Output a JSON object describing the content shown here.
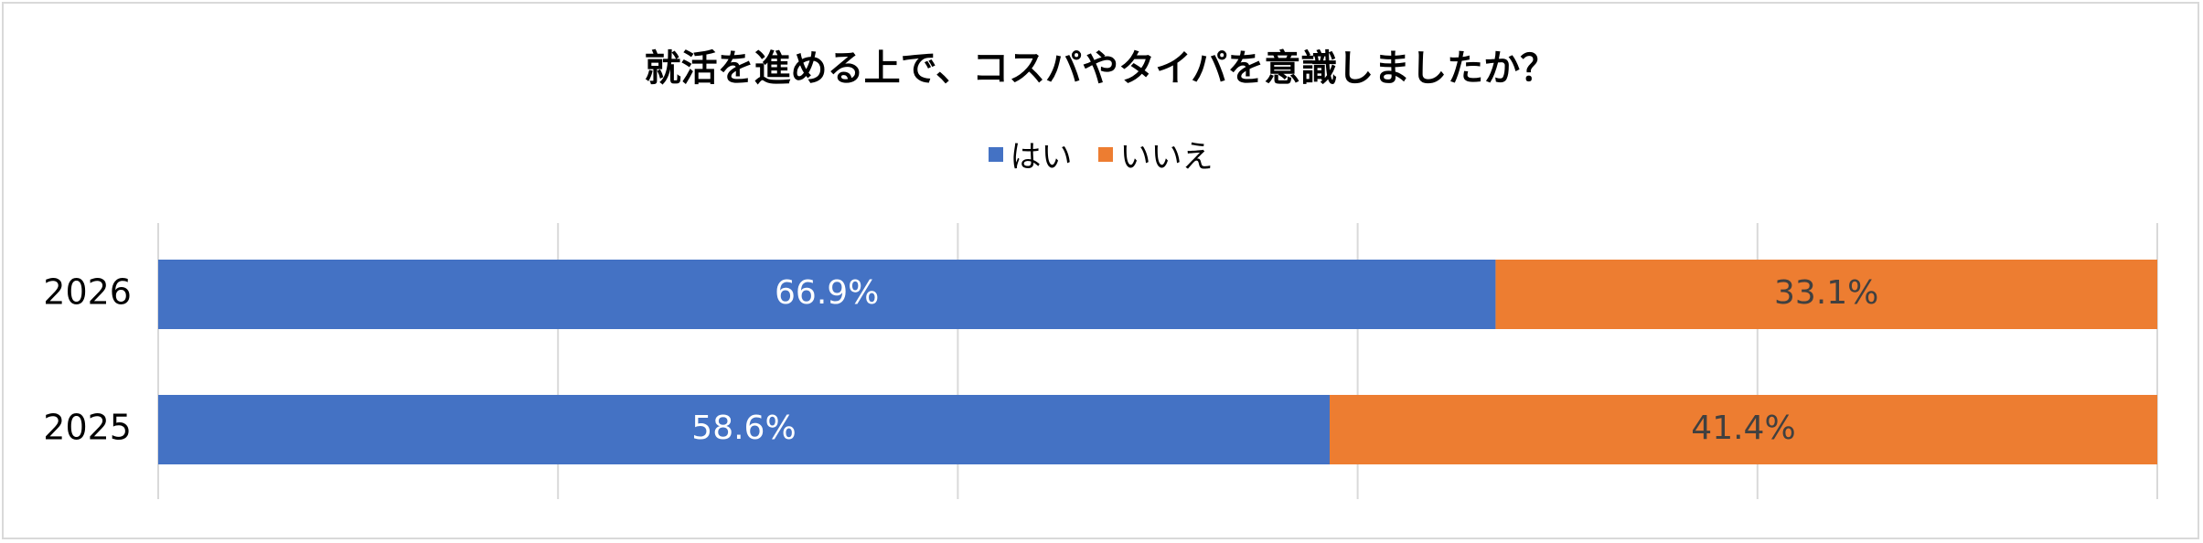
{
  "chart_data": {
    "type": "bar",
    "orientation": "horizontal",
    "stacked": true,
    "title": "就活を進める上で、コスパやタイパを意識しましたか？",
    "categories": [
      "2026",
      "2025"
    ],
    "series": [
      {
        "name": "はい",
        "color": "#4472c4",
        "values": [
          66.9,
          58.6
        ],
        "labels": [
          "66.9%",
          "58.6%"
        ]
      },
      {
        "name": "いいえ",
        "color": "#ed7d31",
        "values": [
          33.1,
          41.4
        ],
        "labels": [
          "33.1%",
          "41.4%"
        ]
      }
    ],
    "xlim": [
      0,
      100
    ],
    "grid": true,
    "legend_position": "top"
  }
}
